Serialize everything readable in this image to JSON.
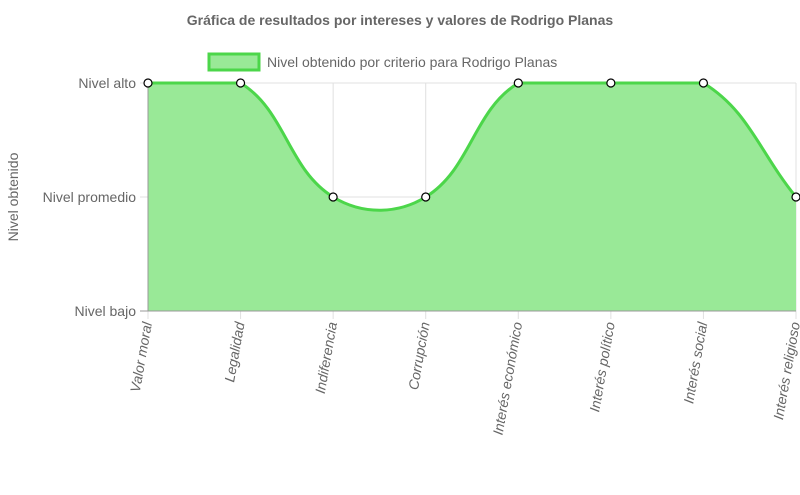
{
  "chart_data": {
    "type": "area",
    "title": "Gráfica de resultados por intereses y valores de Rodrigo Planas",
    "ylabel": "Nivel obtenido",
    "xlabel": "",
    "categories": [
      "Valor moral",
      "Legalidad",
      "Indiferencia",
      "Corrupción",
      "Interés económico",
      "Interés político",
      "Interés social",
      "Interés religioso"
    ],
    "y_ticks": [
      {
        "value": 3,
        "label": "Nivel alto"
      },
      {
        "value": 2,
        "label": "Nivel promedio"
      },
      {
        "value": 1,
        "label": "Nivel bajo"
      }
    ],
    "ylim": [
      1,
      3
    ],
    "series": [
      {
        "name": "Nivel obtenido por criterio para Rodrigo Planas",
        "values": [
          3,
          3,
          2,
          2,
          3,
          3,
          3,
          2
        ],
        "fill_color": "#99e997",
        "line_color": "#4cd64a"
      }
    ],
    "grid": true,
    "legend_position": "top"
  }
}
